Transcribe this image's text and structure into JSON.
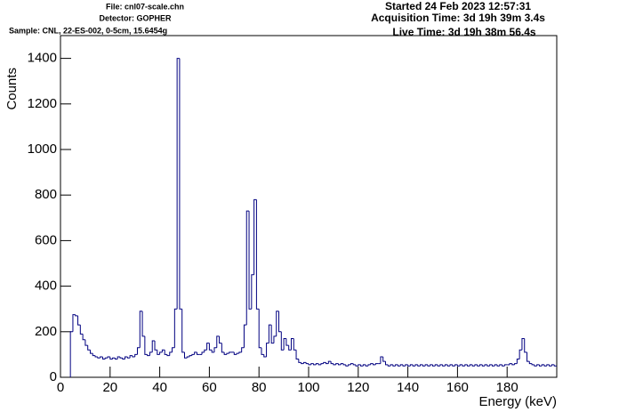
{
  "chart_data": {
    "type": "histogram",
    "header": {
      "file": "File: cnl07-scale.chn",
      "detector": "Detector: GOPHER",
      "sample": "Sample: CNL, 22-ES-002, 0-5cm, 15.6454g",
      "started": "Started 24 Feb 2023 12:57:31",
      "acquisition": "Acquisition Time: 3d 19h 39m 3.4s",
      "live": "Live Time: 3d 19h 38m 56.4s"
    },
    "x_label": "Energy (keV)",
    "y_label": "Counts",
    "color": "#000080",
    "xlim": [
      0,
      200
    ],
    "ylim": [
      0,
      1500
    ],
    "xticks": [
      0,
      20,
      40,
      60,
      80,
      100,
      120,
      140,
      160,
      180
    ],
    "yticks": [
      0,
      200,
      400,
      600,
      800,
      1000,
      1200,
      1400
    ],
    "bins": [
      4,
      5,
      6,
      7,
      8,
      9,
      10,
      11,
      12,
      13,
      14,
      15,
      16,
      17,
      18,
      19,
      20,
      21,
      22,
      23,
      24,
      25,
      26,
      27,
      28,
      29,
      30,
      31,
      32,
      33,
      34,
      35,
      36,
      37,
      38,
      39,
      40,
      41,
      42,
      43,
      44,
      45,
      46,
      47,
      48,
      49,
      50,
      51,
      52,
      53,
      54,
      55,
      56,
      57,
      58,
      59,
      60,
      61,
      62,
      63,
      64,
      65,
      66,
      67,
      68,
      69,
      70,
      71,
      72,
      73,
      74,
      75,
      76,
      77,
      78,
      79,
      80,
      81,
      82,
      83,
      84,
      85,
      86,
      87,
      88,
      89,
      90,
      91,
      92,
      93,
      94,
      95,
      96,
      97,
      98,
      99,
      100,
      101,
      102,
      103,
      104,
      105,
      106,
      107,
      108,
      109,
      110,
      111,
      112,
      113,
      114,
      115,
      116,
      117,
      118,
      119,
      120,
      121,
      122,
      123,
      124,
      125,
      126,
      127,
      128,
      129,
      130,
      131,
      132,
      133,
      134,
      135,
      136,
      137,
      138,
      139,
      140,
      141,
      142,
      143,
      144,
      145,
      146,
      147,
      148,
      149,
      150,
      151,
      152,
      153,
      154,
      155,
      156,
      157,
      158,
      159,
      160,
      161,
      162,
      163,
      164,
      165,
      166,
      167,
      168,
      169,
      170,
      171,
      172,
      173,
      174,
      175,
      176,
      177,
      178,
      179,
      180,
      181,
      182,
      183,
      184,
      185,
      186,
      187,
      188,
      189,
      190,
      191,
      192,
      193,
      194,
      195,
      196,
      197,
      198,
      199,
      200
    ],
    "values": [
      200,
      275,
      270,
      230,
      190,
      165,
      140,
      120,
      105,
      95,
      90,
      85,
      90,
      80,
      85,
      90,
      80,
      85,
      80,
      90,
      85,
      80,
      90,
      85,
      95,
      90,
      100,
      130,
      290,
      180,
      100,
      95,
      110,
      160,
      120,
      100,
      110,
      120,
      100,
      95,
      110,
      130,
      300,
      1400,
      300,
      110,
      85,
      90,
      95,
      100,
      110,
      100,
      100,
      110,
      120,
      150,
      120,
      110,
      130,
      180,
      150,
      110,
      100,
      105,
      110,
      110,
      100,
      105,
      110,
      130,
      230,
      730,
      300,
      450,
      780,
      300,
      130,
      100,
      90,
      150,
      230,
      150,
      180,
      290,
      200,
      120,
      170,
      140,
      120,
      170,
      120,
      80,
      65,
      60,
      65,
      60,
      55,
      60,
      55,
      60,
      55,
      60,
      65,
      60,
      70,
      60,
      55,
      60,
      55,
      60,
      55,
      50,
      55,
      60,
      55,
      50,
      55,
      50,
      55,
      50,
      55,
      60,
      55,
      60,
      60,
      90,
      70,
      55,
      50,
      55,
      50,
      55,
      50,
      55,
      50,
      55,
      50,
      55,
      50,
      55,
      50,
      55,
      50,
      55,
      50,
      55,
      50,
      55,
      50,
      55,
      50,
      55,
      50,
      55,
      50,
      55,
      50,
      55,
      50,
      55,
      50,
      55,
      50,
      55,
      50,
      55,
      50,
      55,
      50,
      55,
      50,
      55,
      50,
      55,
      50,
      55,
      55,
      60,
      55,
      60,
      80,
      120,
      170,
      110,
      70,
      60,
      55,
      50,
      55,
      50,
      55,
      50,
      55,
      50,
      55,
      50
    ]
  }
}
